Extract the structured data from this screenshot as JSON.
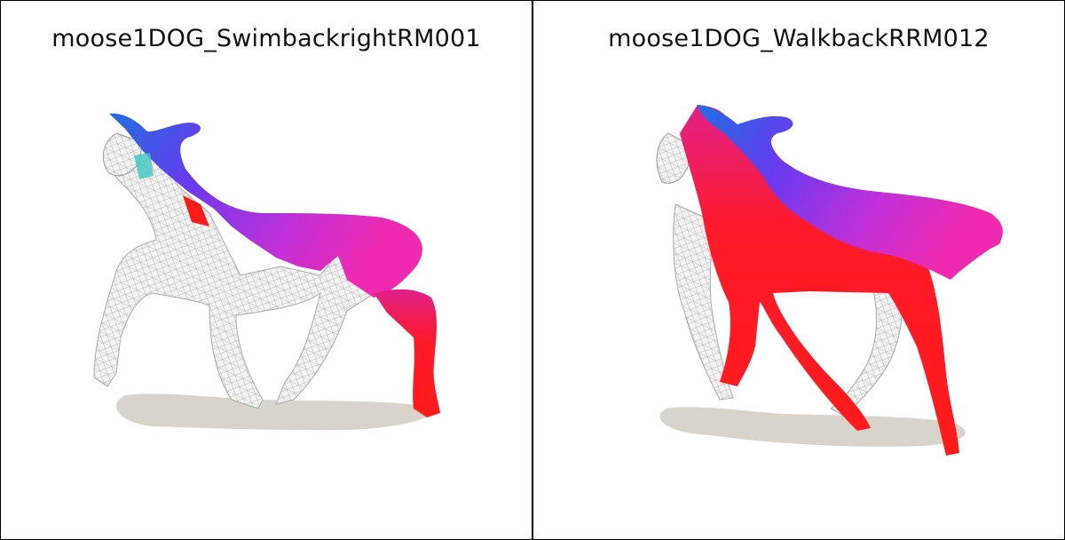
{
  "panels": [
    {
      "title": "moose1DOG_SwimbackrightRM001"
    },
    {
      "title": "moose1DOG_WalkbackRRM012"
    }
  ],
  "colors": {
    "blue": "#1f6fe0",
    "purple": "#7a3ff0",
    "magenta": "#e030c0",
    "red": "#ff1a1a",
    "wire": "#cfcfcf",
    "shadow": "#d8d4cc"
  }
}
